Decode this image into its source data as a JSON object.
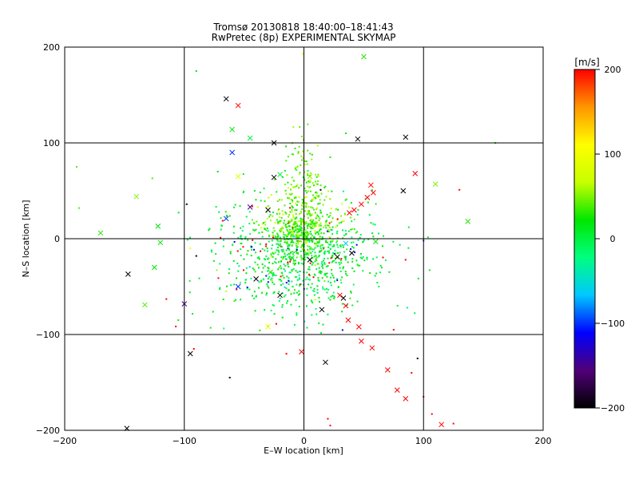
{
  "chart_data": {
    "type": "scatter",
    "title": "Tromsø 20130818 18:40:00–18:41:43",
    "subtitle": "RwPretec (8p) EXPERIMENTAL SKYMAP",
    "xlabel": "E–W location [km]",
    "ylabel": "N–S location [km]",
    "xlim": [
      -200,
      200
    ],
    "ylim": [
      -200,
      200
    ],
    "xticks": [
      "−200",
      "−100",
      "0",
      "100",
      "200"
    ],
    "yticks": [
      "−200",
      "−100",
      "0",
      "100",
      "200"
    ],
    "x_tick_values": [
      -200,
      -100,
      0,
      100,
      200
    ],
    "y_tick_values": [
      -200,
      -100,
      0,
      100,
      200
    ],
    "grid": true,
    "colorbar": {
      "label": "[m/s]",
      "min": -200,
      "max": 200,
      "ticks": [
        "200",
        "100",
        "0",
        "−100",
        "−200"
      ],
      "tick_values": [
        200,
        100,
        0,
        -100,
        -200
      ],
      "colormap": [
        "#000000",
        "#500078",
        "#0000ff",
        "#00c8ff",
        "#00ff80",
        "#00e600",
        "#c8ff00",
        "#ffff00",
        "#ff9600",
        "#ff0000"
      ]
    },
    "cross_points": [
      {
        "x": -65,
        "y": 146,
        "v": -200
      },
      {
        "x": -55,
        "y": 139,
        "v": 200
      },
      {
        "x": -60,
        "y": 114,
        "v": 20
      },
      {
        "x": -60,
        "y": 90,
        "v": -100
      },
      {
        "x": -45,
        "y": 105,
        "v": 0
      },
      {
        "x": -25,
        "y": 100,
        "v": -200
      },
      {
        "x": 45,
        "y": 104,
        "v": -200
      },
      {
        "x": 85,
        "y": 106,
        "v": -200
      },
      {
        "x": 50,
        "y": 190,
        "v": 30
      },
      {
        "x": -140,
        "y": 44,
        "v": 50
      },
      {
        "x": -122,
        "y": 13,
        "v": 20
      },
      {
        "x": -120,
        "y": -4,
        "v": 20
      },
      {
        "x": -170,
        "y": 6,
        "v": 30
      },
      {
        "x": -65,
        "y": 21,
        "v": -100
      },
      {
        "x": -45,
        "y": 33,
        "v": -150
      },
      {
        "x": -30,
        "y": 30,
        "v": -200
      },
      {
        "x": -25,
        "y": 64,
        "v": -200
      },
      {
        "x": -20,
        "y": 67,
        "v": 0
      },
      {
        "x": -55,
        "y": 65,
        "v": 90
      },
      {
        "x": 5,
        "y": 65,
        "v": 50
      },
      {
        "x": 38,
        "y": 27,
        "v": 200
      },
      {
        "x": 42,
        "y": 30,
        "v": 200
      },
      {
        "x": 48,
        "y": 36,
        "v": 200
      },
      {
        "x": 53,
        "y": 43,
        "v": 200
      },
      {
        "x": 58,
        "y": 48,
        "v": 200
      },
      {
        "x": 56,
        "y": 56,
        "v": 200
      },
      {
        "x": 83,
        "y": 50,
        "v": -200
      },
      {
        "x": 93,
        "y": 68,
        "v": 200
      },
      {
        "x": 110,
        "y": 57,
        "v": 50
      },
      {
        "x": 137,
        "y": 18,
        "v": 30
      },
      {
        "x": 60,
        "y": -3,
        "v": 20
      },
      {
        "x": 40,
        "y": -15,
        "v": -200
      },
      {
        "x": 28,
        "y": -19,
        "v": -200
      },
      {
        "x": 5,
        "y": -22,
        "v": -200
      },
      {
        "x": -10,
        "y": -20,
        "v": 10
      },
      {
        "x": -40,
        "y": -42,
        "v": -200
      },
      {
        "x": -55,
        "y": -50,
        "v": -100
      },
      {
        "x": -20,
        "y": -59,
        "v": -200
      },
      {
        "x": -125,
        "y": -30,
        "v": 20
      },
      {
        "x": -147,
        "y": -37,
        "v": -200
      },
      {
        "x": -133,
        "y": -69,
        "v": 40
      },
      {
        "x": -100,
        "y": -68,
        "v": -150
      },
      {
        "x": -95,
        "y": -120,
        "v": -200
      },
      {
        "x": -148,
        "y": -198,
        "v": -200
      },
      {
        "x": 15,
        "y": -74,
        "v": -200
      },
      {
        "x": 33,
        "y": -62,
        "v": -200
      },
      {
        "x": 30,
        "y": -59,
        "v": 200
      },
      {
        "x": 35,
        "y": -70,
        "v": 200
      },
      {
        "x": 37,
        "y": -85,
        "v": 200
      },
      {
        "x": 46,
        "y": -92,
        "v": 200
      },
      {
        "x": 48,
        "y": -107,
        "v": 200
      },
      {
        "x": 57,
        "y": -114,
        "v": 200
      },
      {
        "x": 70,
        "y": -137,
        "v": 200
      },
      {
        "x": 78,
        "y": -158,
        "v": 200
      },
      {
        "x": 85,
        "y": -167,
        "v": 200
      },
      {
        "x": 115,
        "y": -194,
        "v": 200
      },
      {
        "x": 18,
        "y": -129,
        "v": -200
      },
      {
        "x": -2,
        "y": -118,
        "v": 200
      },
      {
        "x": -30,
        "y": -92,
        "v": 100
      },
      {
        "x": -28,
        "y": -35,
        "v": 30
      },
      {
        "x": 35,
        "y": -5,
        "v": -60
      },
      {
        "x": 0,
        "y": 5,
        "v": 10
      }
    ],
    "dot_points": [
      {
        "x": -90,
        "y": 175,
        "v": 20
      },
      {
        "x": -1,
        "y": 193,
        "v": 100
      },
      {
        "x": -72,
        "y": 70,
        "v": 20
      },
      {
        "x": 35,
        "y": 110,
        "v": 20
      },
      {
        "x": 160,
        "y": 100,
        "v": 20
      },
      {
        "x": -190,
        "y": 75,
        "v": 40
      },
      {
        "x": -188,
        "y": 32,
        "v": 40
      },
      {
        "x": -98,
        "y": 36,
        "v": -200
      },
      {
        "x": -90,
        "y": -18,
        "v": -200
      },
      {
        "x": -95,
        "y": -10,
        "v": 100
      },
      {
        "x": -115,
        "y": -63,
        "v": 200
      },
      {
        "x": -105,
        "y": -85,
        "v": 30
      },
      {
        "x": -92,
        "y": -115,
        "v": 200
      },
      {
        "x": -78,
        "y": -93,
        "v": 30
      },
      {
        "x": -62,
        "y": -145,
        "v": -200
      },
      {
        "x": 95,
        "y": -125,
        "v": -200
      },
      {
        "x": 100,
        "y": -165,
        "v": 200
      },
      {
        "x": 107,
        "y": -183,
        "v": 200
      },
      {
        "x": 125,
        "y": -193,
        "v": 200
      },
      {
        "x": 20,
        "y": -188,
        "v": 200
      },
      {
        "x": 22,
        "y": -195,
        "v": 200
      },
      {
        "x": 130,
        "y": 51,
        "v": 200
      },
      {
        "x": 100,
        "y": -2,
        "v": -100
      },
      {
        "x": 85,
        "y": -22,
        "v": 200
      },
      {
        "x": 75,
        "y": -95,
        "v": 200
      },
      {
        "x": 90,
        "y": -140,
        "v": 200
      },
      {
        "x": 14,
        "y": 51,
        "v": -200
      },
      {
        "x": 22,
        "y": 85,
        "v": 30
      }
    ],
    "cluster": {
      "cx": -5,
      "cy": -15,
      "spread": 35,
      "count": 900,
      "core_x": -2,
      "core_y": 5,
      "core_spread": 12,
      "core_count": 280,
      "column_x": 0,
      "column_y": 55,
      "column_count": 150
    }
  }
}
